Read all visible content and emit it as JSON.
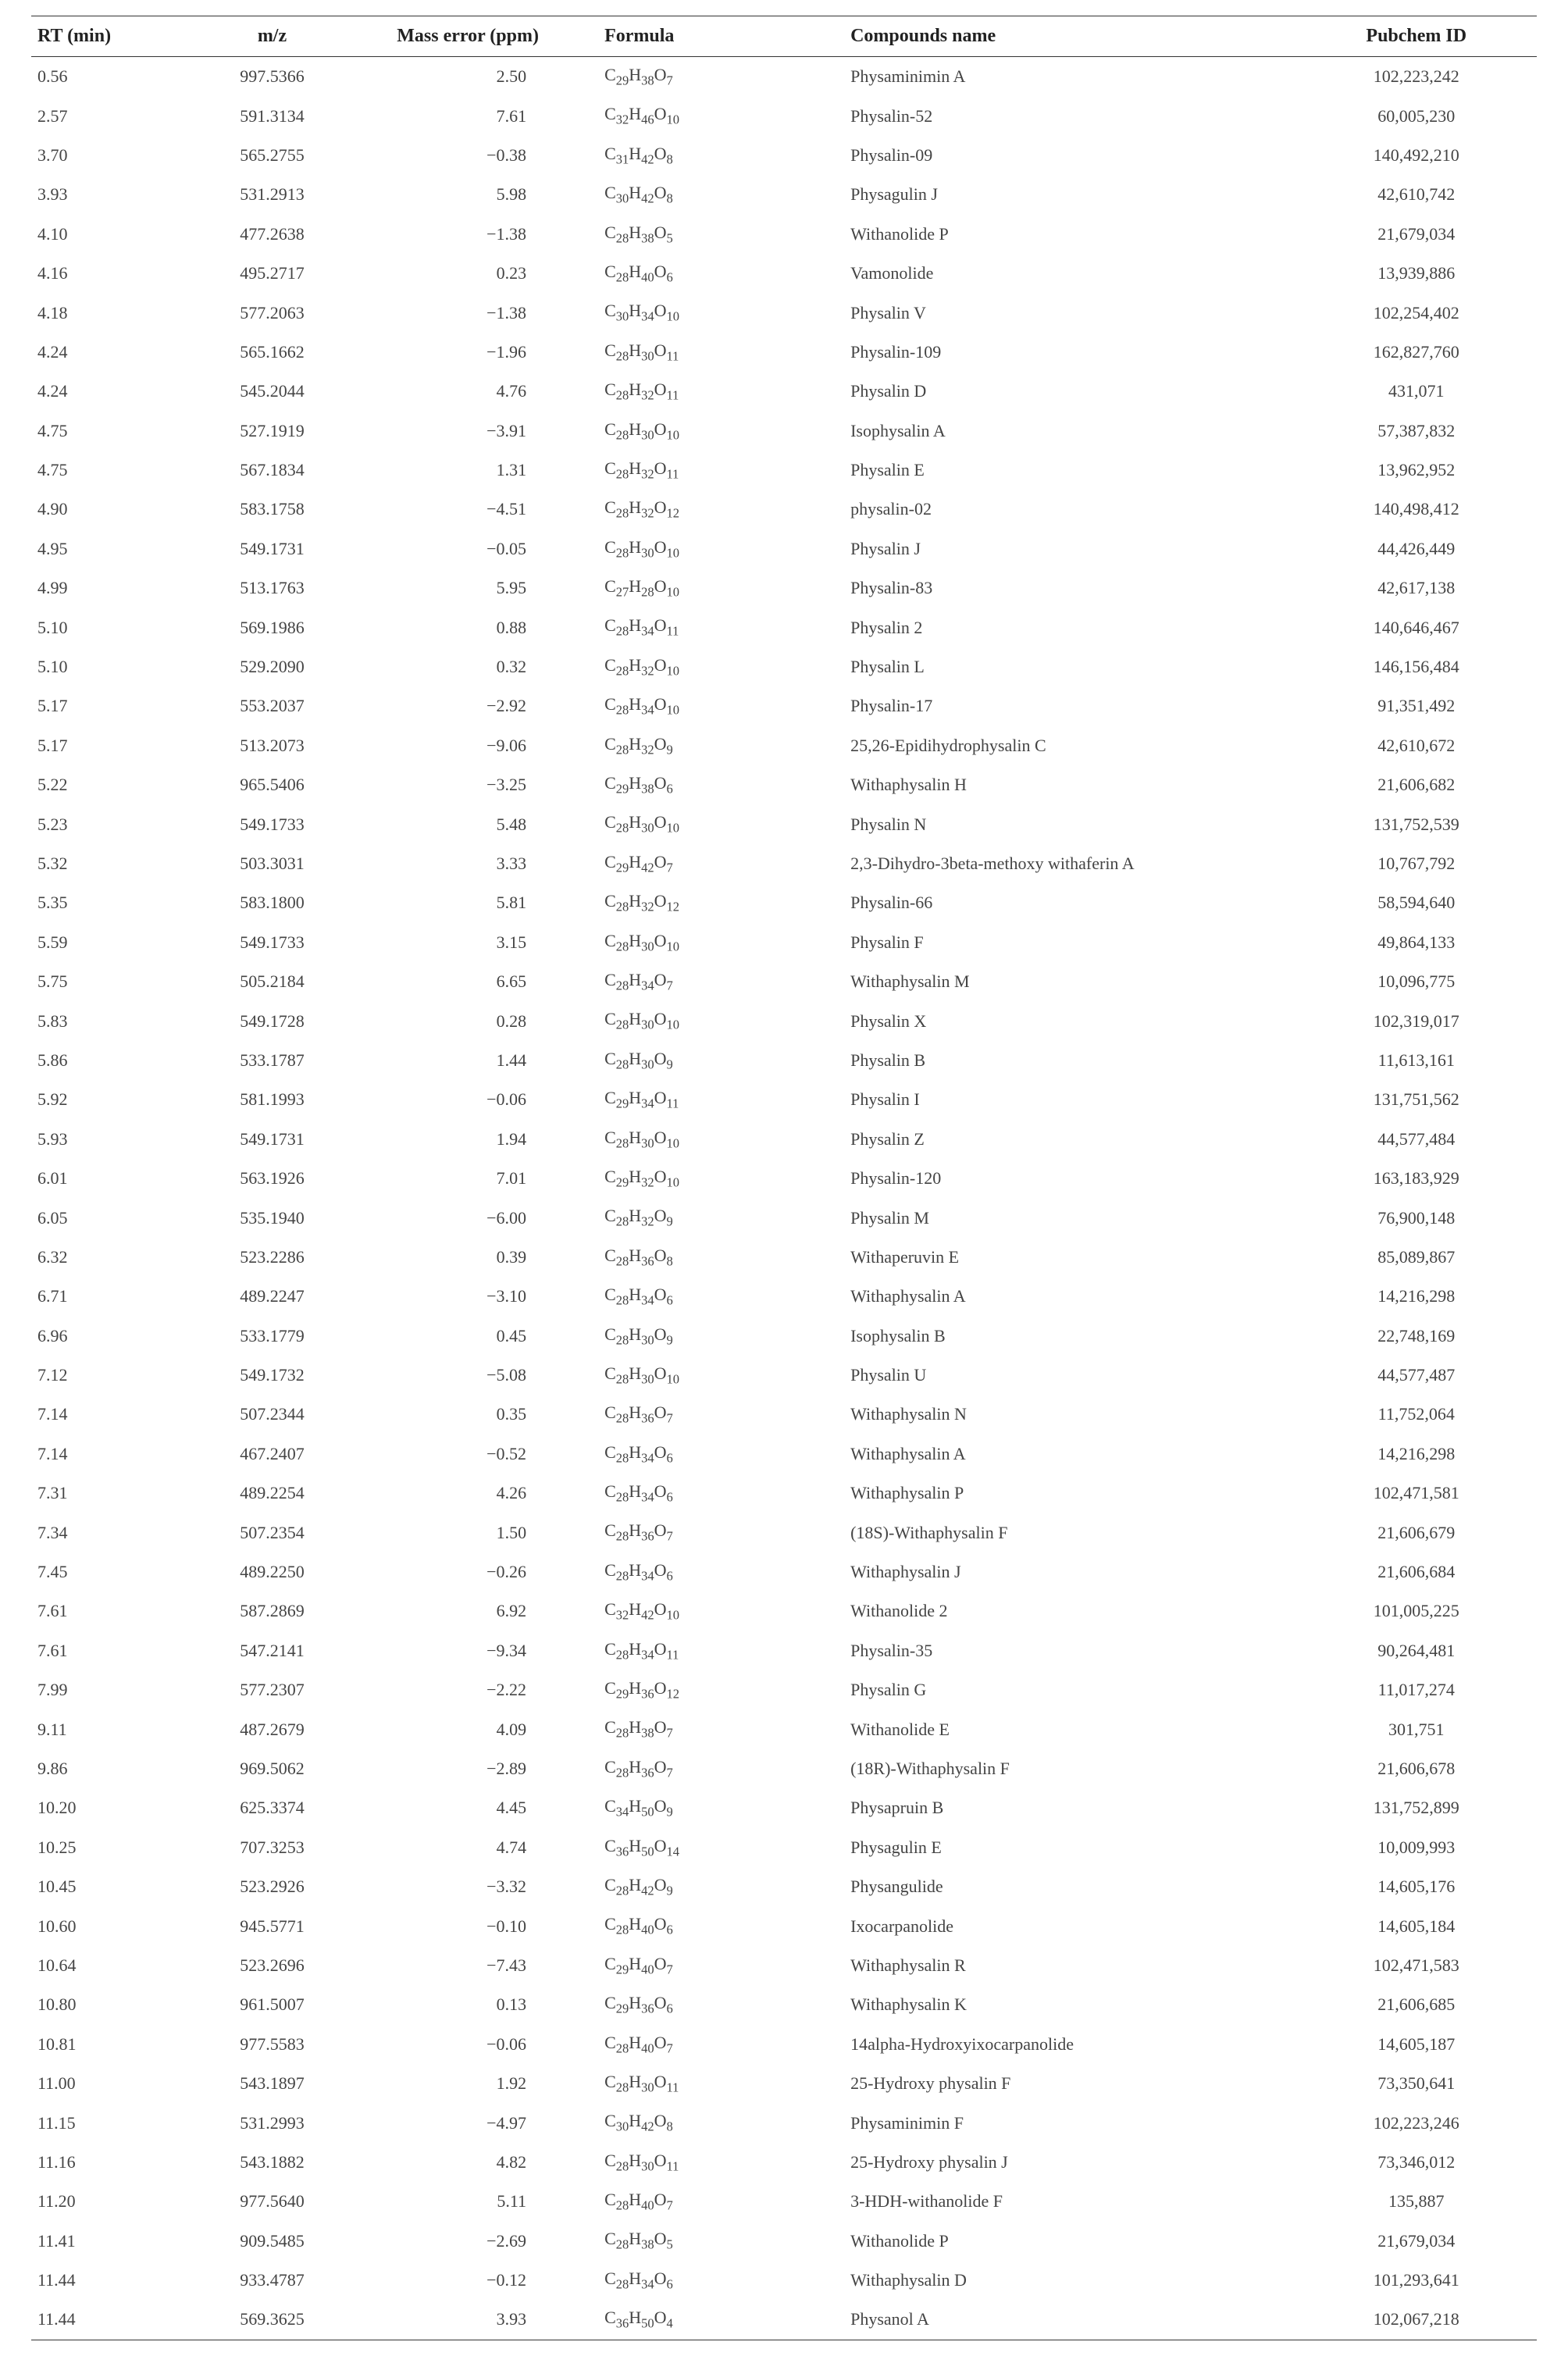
{
  "table": {
    "headers": [
      "RT (min)",
      "m/z",
      "Mass error (ppm)",
      "Formula",
      "Compounds name",
      "Pubchem ID"
    ],
    "rows": [
      {
        "rt": "0.56",
        "mz": "997.5366",
        "error": "2.50",
        "formula": "C29H38O7",
        "name": "Physaminimin A",
        "pubchem": "102,223,242"
      },
      {
        "rt": "2.57",
        "mz": "591.3134",
        "error": "7.61",
        "formula": "C32H46O10",
        "name": "Physalin-52",
        "pubchem": "60,005,230"
      },
      {
        "rt": "3.70",
        "mz": "565.2755",
        "error": "−0.38",
        "formula": "C31H42O8",
        "name": "Physalin-09",
        "pubchem": "140,492,210"
      },
      {
        "rt": "3.93",
        "mz": "531.2913",
        "error": "5.98",
        "formula": "C30H42O8",
        "name": "Physagulin J",
        "pubchem": "42,610,742"
      },
      {
        "rt": "4.10",
        "mz": "477.2638",
        "error": "−1.38",
        "formula": "C28H38O5",
        "name": "Withanolide P",
        "pubchem": "21,679,034"
      },
      {
        "rt": "4.16",
        "mz": "495.2717",
        "error": "0.23",
        "formula": "C28H40O6",
        "name": "Vamonolide",
        "pubchem": "13,939,886"
      },
      {
        "rt": "4.18",
        "mz": "577.2063",
        "error": "−1.38",
        "formula": "C30H34O10",
        "name": "Physalin V",
        "pubchem": "102,254,402"
      },
      {
        "rt": "4.24",
        "mz": "565.1662",
        "error": "−1.96",
        "formula": "C28H30O11",
        "name": "Physalin-109",
        "pubchem": "162,827,760"
      },
      {
        "rt": "4.24",
        "mz": "545.2044",
        "error": "4.76",
        "formula": "C28H32O11",
        "name": "Physalin D",
        "pubchem": "431,071"
      },
      {
        "rt": "4.75",
        "mz": "527.1919",
        "error": "−3.91",
        "formula": "C28H30O10",
        "name": "Isophysalin A",
        "pubchem": "57,387,832"
      },
      {
        "rt": "4.75",
        "mz": "567.1834",
        "error": "1.31",
        "formula": "C28H32O11",
        "name": "Physalin E",
        "pubchem": "13,962,952"
      },
      {
        "rt": "4.90",
        "mz": "583.1758",
        "error": "−4.51",
        "formula": "C28H32O12",
        "name": "physalin-02",
        "pubchem": "140,498,412"
      },
      {
        "rt": "4.95",
        "mz": "549.1731",
        "error": "−0.05",
        "formula": "C28H30O10",
        "name": "Physalin J",
        "pubchem": "44,426,449"
      },
      {
        "rt": "4.99",
        "mz": "513.1763",
        "error": "5.95",
        "formula": "C27H28O10",
        "name": "Physalin-83",
        "pubchem": "42,617,138"
      },
      {
        "rt": "5.10",
        "mz": "569.1986",
        "error": "0.88",
        "formula": "C28H34O11",
        "name": "Physalin 2",
        "pubchem": "140,646,467"
      },
      {
        "rt": "5.10",
        "mz": "529.2090",
        "error": "0.32",
        "formula": "C28H32O10",
        "name": "Physalin L",
        "pubchem": "146,156,484"
      },
      {
        "rt": "5.17",
        "mz": "553.2037",
        "error": "−2.92",
        "formula": "C28H34O10",
        "name": "Physalin-17",
        "pubchem": "91,351,492"
      },
      {
        "rt": "5.17",
        "mz": "513.2073",
        "error": "−9.06",
        "formula": "C28H32O9",
        "name": "25,26-Epidihydrophysalin C",
        "pubchem": "42,610,672"
      },
      {
        "rt": "5.22",
        "mz": "965.5406",
        "error": "−3.25",
        "formula": "C29H38O6",
        "name": "Withaphysalin H",
        "pubchem": "21,606,682"
      },
      {
        "rt": "5.23",
        "mz": "549.1733",
        "error": "5.48",
        "formula": "C28H30O10",
        "name": "Physalin N",
        "pubchem": "131,752,539"
      },
      {
        "rt": "5.32",
        "mz": "503.3031",
        "error": "3.33",
        "formula": "C29H42O7",
        "name": "2,3-Dihydro-3beta-methoxy withaferin A",
        "pubchem": "10,767,792"
      },
      {
        "rt": "5.35",
        "mz": "583.1800",
        "error": "5.81",
        "formula": "C28H32O12",
        "name": "Physalin-66",
        "pubchem": "58,594,640"
      },
      {
        "rt": "5.59",
        "mz": "549.1733",
        "error": "3.15",
        "formula": "C28H30O10",
        "name": "Physalin F",
        "pubchem": "49,864,133"
      },
      {
        "rt": "5.75",
        "mz": "505.2184",
        "error": "6.65",
        "formula": "C28H34O7",
        "name": "Withaphysalin M",
        "pubchem": "10,096,775"
      },
      {
        "rt": "5.83",
        "mz": "549.1728",
        "error": "0.28",
        "formula": "C28H30O10",
        "name": "Physalin X",
        "pubchem": "102,319,017"
      },
      {
        "rt": "5.86",
        "mz": "533.1787",
        "error": "1.44",
        "formula": "C28H30O9",
        "name": "Physalin B",
        "pubchem": "11,613,161"
      },
      {
        "rt": "5.92",
        "mz": "581.1993",
        "error": "−0.06",
        "formula": "C29H34O11",
        "name": "Physalin I",
        "pubchem": "131,751,562"
      },
      {
        "rt": "5.93",
        "mz": "549.1731",
        "error": "1.94",
        "formula": "C28H30O10",
        "name": "Physalin Z",
        "pubchem": "44,577,484"
      },
      {
        "rt": "6.01",
        "mz": "563.1926",
        "error": "7.01",
        "formula": "C29H32O10",
        "name": "Physalin-120",
        "pubchem": "163,183,929"
      },
      {
        "rt": "6.05",
        "mz": "535.1940",
        "error": "−6.00",
        "formula": "C28H32O9",
        "name": "Physalin M",
        "pubchem": "76,900,148"
      },
      {
        "rt": "6.32",
        "mz": "523.2286",
        "error": "0.39",
        "formula": "C28H36O8",
        "name": "Withaperuvin E",
        "pubchem": "85,089,867"
      },
      {
        "rt": "6.71",
        "mz": "489.2247",
        "error": "−3.10",
        "formula": "C28H34O6",
        "name": "Withaphysalin A",
        "pubchem": "14,216,298"
      },
      {
        "rt": "6.96",
        "mz": "533.1779",
        "error": "0.45",
        "formula": "C28H30O9",
        "name": "Isophysalin B",
        "pubchem": "22,748,169"
      },
      {
        "rt": "7.12",
        "mz": "549.1732",
        "error": "−5.08",
        "formula": "C28H30O10",
        "name": "Physalin U",
        "pubchem": "44,577,487"
      },
      {
        "rt": "7.14",
        "mz": "507.2344",
        "error": "0.35",
        "formula": "C28H36O7",
        "name": "Withaphysalin N",
        "pubchem": "11,752,064"
      },
      {
        "rt": "7.14",
        "mz": "467.2407",
        "error": "−0.52",
        "formula": "C28H34O6",
        "name": "Withaphysalin A",
        "pubchem": "14,216,298"
      },
      {
        "rt": "7.31",
        "mz": "489.2254",
        "error": "4.26",
        "formula": "C28H34O6",
        "name": "Withaphysalin P",
        "pubchem": "102,471,581"
      },
      {
        "rt": "7.34",
        "mz": "507.2354",
        "error": "1.50",
        "formula": "C28H36O7",
        "name": "(18S)-Withaphysalin F",
        "pubchem": "21,606,679"
      },
      {
        "rt": "7.45",
        "mz": "489.2250",
        "error": "−0.26",
        "formula": "C28H34O6",
        "name": "Withaphysalin J",
        "pubchem": "21,606,684"
      },
      {
        "rt": "7.61",
        "mz": "587.2869",
        "error": "6.92",
        "formula": "C32H42O10",
        "name": "Withanolide 2",
        "pubchem": "101,005,225"
      },
      {
        "rt": "7.61",
        "mz": "547.2141",
        "error": "−9.34",
        "formula": "C28H34O11",
        "name": "Physalin-35",
        "pubchem": "90,264,481"
      },
      {
        "rt": "7.99",
        "mz": "577.2307",
        "error": "−2.22",
        "formula": "C29H36O12",
        "name": "Physalin G",
        "pubchem": "11,017,274"
      },
      {
        "rt": "9.11",
        "mz": "487.2679",
        "error": "4.09",
        "formula": "C28H38O7",
        "name": "Withanolide E",
        "pubchem": "301,751"
      },
      {
        "rt": "9.86",
        "mz": "969.5062",
        "error": "−2.89",
        "formula": "C28H36O7",
        "name": "(18R)-Withaphysalin F",
        "pubchem": "21,606,678"
      },
      {
        "rt": "10.20",
        "mz": "625.3374",
        "error": "4.45",
        "formula": "C34H50O9",
        "name": "Physapruin B",
        "pubchem": "131,752,899"
      },
      {
        "rt": "10.25",
        "mz": "707.3253",
        "error": "4.74",
        "formula": "C36H50O14",
        "name": "Physagulin E",
        "pubchem": "10,009,993"
      },
      {
        "rt": "10.45",
        "mz": "523.2926",
        "error": "−3.32",
        "formula": "C28H42O9",
        "name": "Physangulide",
        "pubchem": "14,605,176"
      },
      {
        "rt": "10.60",
        "mz": "945.5771",
        "error": "−0.10",
        "formula": "C28H40O6",
        "name": "Ixocarpanolide",
        "pubchem": "14,605,184"
      },
      {
        "rt": "10.64",
        "mz": "523.2696",
        "error": "−7.43",
        "formula": "C29H40O7",
        "name": "Withaphysalin R",
        "pubchem": "102,471,583"
      },
      {
        "rt": "10.80",
        "mz": "961.5007",
        "error": "0.13",
        "formula": "C29H36O6",
        "name": "Withaphysalin K",
        "pubchem": "21,606,685"
      },
      {
        "rt": "10.81",
        "mz": "977.5583",
        "error": "−0.06",
        "formula": "C28H40O7",
        "name": "14alpha-Hydroxyixocarpanolide",
        "pubchem": "14,605,187"
      },
      {
        "rt": "11.00",
        "mz": "543.1897",
        "error": "1.92",
        "formula": "C28H30O11",
        "name": "25-Hydroxy physalin F",
        "pubchem": "73,350,641"
      },
      {
        "rt": "11.15",
        "mz": "531.2993",
        "error": "−4.97",
        "formula": "C30H42O8",
        "name": "Physaminimin F",
        "pubchem": "102,223,246"
      },
      {
        "rt": "11.16",
        "mz": "543.1882",
        "error": "4.82",
        "formula": "C28H30O11",
        "name": "25-Hydroxy physalin J",
        "pubchem": "73,346,012"
      },
      {
        "rt": "11.20",
        "mz": "977.5640",
        "error": "5.11",
        "formula": "C28H40O7",
        "name": "3-HDH-withanolide F",
        "pubchem": "135,887"
      },
      {
        "rt": "11.41",
        "mz": "909.5485",
        "error": "−2.69",
        "formula": "C28H38O5",
        "name": "Withanolide P",
        "pubchem": "21,679,034"
      },
      {
        "rt": "11.44",
        "mz": "933.4787",
        "error": "−0.12",
        "formula": "C28H34O6",
        "name": "Withaphysalin D",
        "pubchem": "101,293,641"
      },
      {
        "rt": "11.44",
        "mz": "569.3625",
        "error": "3.93",
        "formula": "C36H50O4",
        "name": "Physanol A",
        "pubchem": "102,067,218"
      }
    ]
  }
}
